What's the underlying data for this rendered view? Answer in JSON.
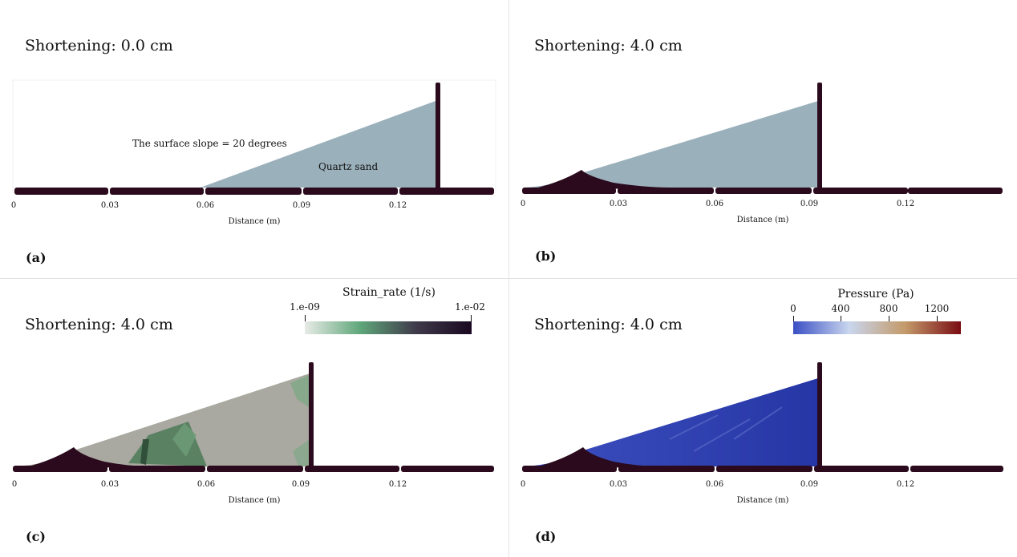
{
  "panels": {
    "a": {
      "shortening": "Shortening: 0.0 cm",
      "label": "(a)",
      "annotation_slope": "The surface slope = 20 degrees",
      "annotation_material": "Quartz sand",
      "xlabel": "Distance (m)",
      "ticks": [
        "0",
        "0.03",
        "0.06",
        "0.09",
        "0.12"
      ]
    },
    "b": {
      "shortening": "Shortening: 4.0 cm",
      "label": "(b)",
      "xlabel": "Distance (m)",
      "ticks": [
        "0",
        "0.03",
        "0.06",
        "0.09",
        "0.12"
      ]
    },
    "c": {
      "shortening": "Shortening: 4.0 cm",
      "label": "(c)",
      "xlabel": "Distance (m)",
      "ticks": [
        "0",
        "0.03",
        "0.06",
        "0.09",
        "0.12"
      ],
      "colorbar": {
        "title": "Strain_rate (1/s)",
        "min_label": "1.e-09",
        "max_label": "1.e-02",
        "scale": "log",
        "colors": [
          "#e8ebe6",
          "#5fa67a",
          "#3f3a4a",
          "#1a0820"
        ]
      }
    },
    "d": {
      "shortening": "Shortening: 4.0 cm",
      "label": "(d)",
      "xlabel": "Distance (m)",
      "ticks": [
        "0",
        "0.03",
        "0.06",
        "0.09",
        "0.12"
      ],
      "colorbar": {
        "title": "Pressure (Pa)",
        "labels": [
          "0",
          "400",
          "800",
          "1200"
        ],
        "range": [
          0,
          1400
        ],
        "colors": [
          "#3a4fc4",
          "#c9d6ee",
          "#c39a6a",
          "#7a0d14"
        ]
      }
    }
  },
  "colors": {
    "substrate": "#2a0a1c",
    "sand": "#9ab0bb",
    "strain_background": "#a9a9a1",
    "strain_band": "#4e7a58",
    "pressure_low": "#3d4fbf",
    "pressure_high": "#2636a5"
  }
}
